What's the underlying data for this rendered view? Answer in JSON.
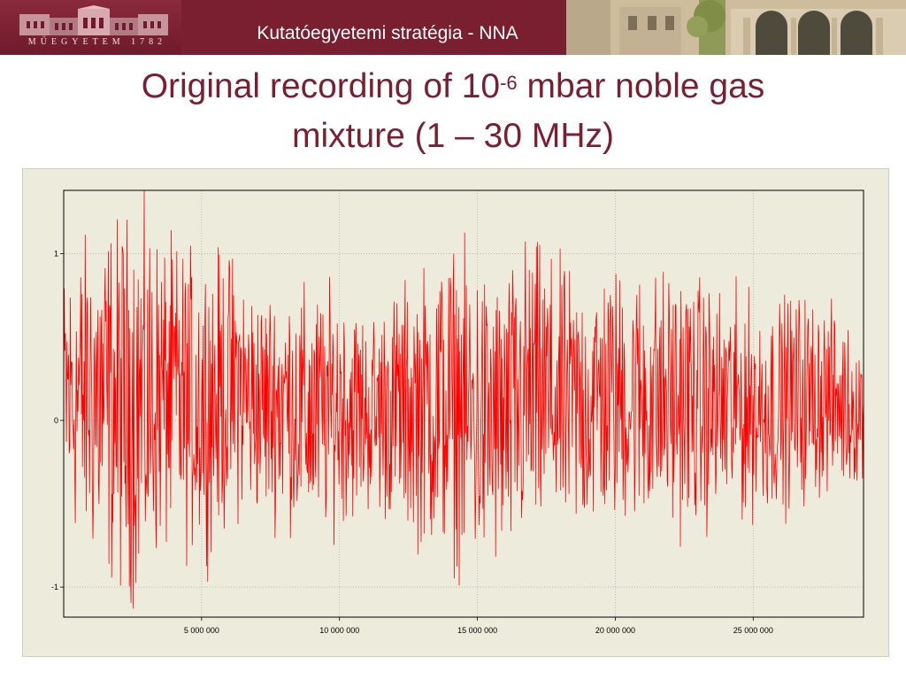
{
  "header": {
    "title": "Kutatóegyetemi stratégia - NNA",
    "logo_text": "MŰEGYETEM 1782"
  },
  "slide": {
    "title_part1": "Original recording of 10",
    "title_exponent": "-6",
    "title_part2": " mbar noble gas",
    "title_line2": "mixture (1 – 30 MHz)"
  },
  "colors": {
    "header_bg": "#7a1f30",
    "title_text": "#7a1f30",
    "signal": "#ff0000",
    "plot_bg": "#ecebdc"
  },
  "chart_data": {
    "type": "line",
    "title": "",
    "xlabel": "",
    "ylabel": "",
    "xlim": [
      0,
      29000000
    ],
    "ylim": [
      -1.18,
      1.38
    ],
    "x_ticks": [
      5000000,
      10000000,
      15000000,
      20000000,
      25000000
    ],
    "x_tick_labels": [
      "5 000 000",
      "10 000 000",
      "15 000 000",
      "20 000 000",
      "25 000 000"
    ],
    "y_ticks": [
      1,
      0,
      -1
    ],
    "y_tick_labels": [
      "1",
      "0",
      "-1"
    ],
    "grid": true,
    "series": [
      {
        "color": "#ff0000",
        "x_step": 20000,
        "envelope": {
          "x": [
            0,
            1000000,
            2000000,
            2700000,
            3500000,
            4500000,
            5500000,
            6200000,
            7000000,
            8000000,
            9000000,
            10000000,
            11000000,
            12000000,
            13000000,
            14000000,
            15000000,
            16000000,
            16800000,
            17500000,
            18500000,
            19500000,
            20500000,
            21500000,
            22500000,
            23500000,
            24500000,
            25500000,
            26500000,
            27500000,
            28500000,
            29000000
          ],
          "upper": [
            1.0,
            1.25,
            1.33,
            1.4,
            1.2,
            1.12,
            1.1,
            1.08,
            0.85,
            0.9,
            0.85,
            0.88,
            0.7,
            0.85,
            1.0,
            1.15,
            1.05,
            0.95,
            1.2,
            1.1,
            0.95,
            1.0,
            1.0,
            0.98,
            1.0,
            0.88,
            0.85,
            0.75,
            0.85,
            0.8,
            0.6,
            0.55
          ],
          "lower": [
            -0.7,
            -0.95,
            -1.15,
            -1.22,
            -0.9,
            -0.9,
            -0.85,
            -0.68,
            -0.65,
            -0.7,
            -0.8,
            -0.7,
            -0.62,
            -0.7,
            -0.85,
            -0.95,
            -1.05,
            -1.0,
            -0.9,
            -0.8,
            -0.8,
            -0.75,
            -0.7,
            -0.75,
            -0.75,
            -0.72,
            -0.7,
            -0.62,
            -0.6,
            -0.52,
            -0.45,
            -0.42
          ]
        }
      }
    ]
  }
}
